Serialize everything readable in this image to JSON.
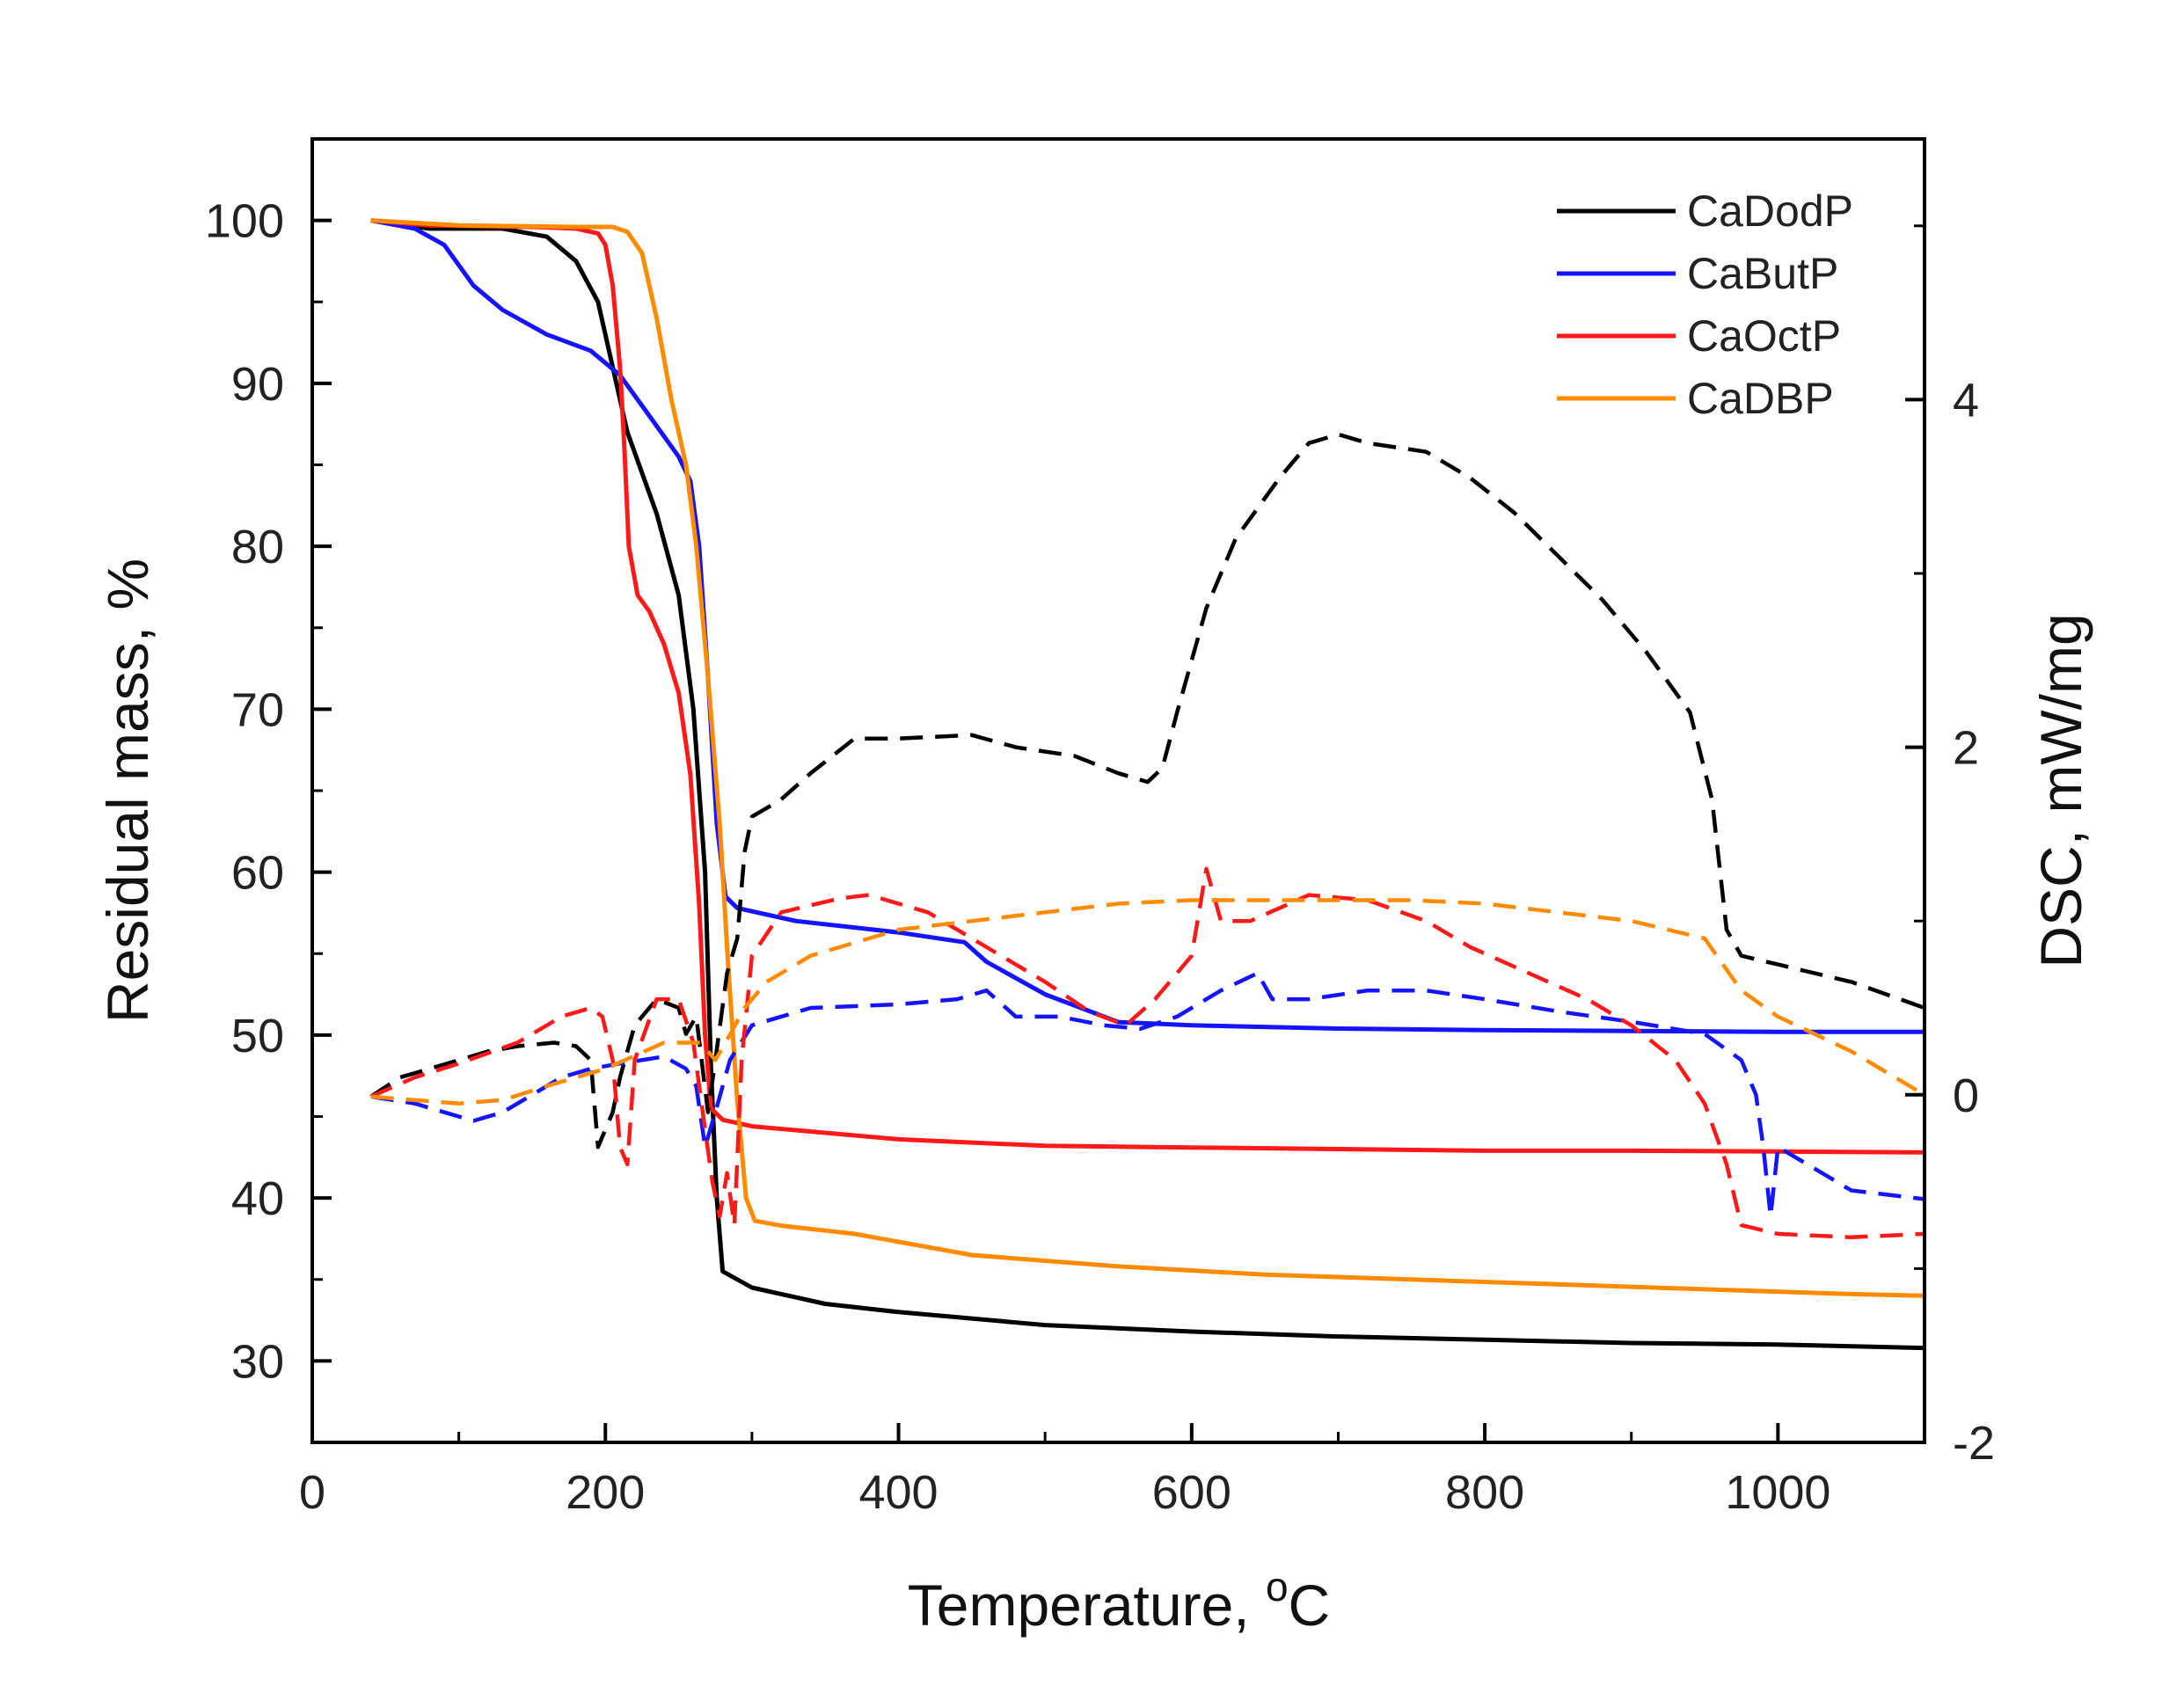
{
  "chart_data": {
    "type": "line",
    "xlabel": "Temperature, ",
    "xlabel_sup": "o",
    "xlabel_unit": "C",
    "ylabel_left": "Residual mass, %",
    "ylabel_right": "DSC, mW/mg",
    "xlim": [
      0,
      1100
    ],
    "ylim_left": [
      25,
      105
    ],
    "ylim_right": [
      -2,
      5.5
    ],
    "x_ticks": [
      0,
      200,
      400,
      600,
      800,
      1000
    ],
    "y_left_ticks": [
      30,
      40,
      50,
      60,
      70,
      80,
      90,
      100
    ],
    "y_right_ticks": [
      -2,
      0,
      2,
      4
    ],
    "legend_position": "top-right",
    "grid": false,
    "colors": {
      "CaDodP": "#000000",
      "CaButP": "#1414ff",
      "CaOctP": "#ff1a1a",
      "CaDBP": "#ff8c00"
    },
    "series": [
      {
        "name": "CaDodP",
        "kind": "TG",
        "axis": "left",
        "points": [
          [
            40,
            100
          ],
          [
            80,
            99.5
          ],
          [
            130,
            99.5
          ],
          [
            160,
            99
          ],
          [
            180,
            97.5
          ],
          [
            195,
            95
          ],
          [
            205,
            91
          ],
          [
            215,
            87
          ],
          [
            235,
            82
          ],
          [
            250,
            77
          ],
          [
            260,
            70
          ],
          [
            268,
            60
          ],
          [
            272,
            48
          ],
          [
            276,
            40
          ],
          [
            280,
            35.5
          ],
          [
            300,
            34.5
          ],
          [
            350,
            33.5
          ],
          [
            400,
            33
          ],
          [
            500,
            32.2
          ],
          [
            600,
            31.8
          ],
          [
            700,
            31.5
          ],
          [
            800,
            31.3
          ],
          [
            900,
            31.1
          ],
          [
            1000,
            31
          ],
          [
            1100,
            30.8
          ]
        ]
      },
      {
        "name": "CaButP",
        "kind": "TG",
        "axis": "left",
        "points": [
          [
            40,
            100
          ],
          [
            70,
            99.5
          ],
          [
            90,
            98.5
          ],
          [
            110,
            96
          ],
          [
            130,
            94.5
          ],
          [
            160,
            93
          ],
          [
            190,
            92
          ],
          [
            210,
            90.5
          ],
          [
            230,
            88
          ],
          [
            250,
            85.5
          ],
          [
            258,
            84
          ],
          [
            264,
            80
          ],
          [
            270,
            72
          ],
          [
            276,
            63
          ],
          [
            282,
            58.5
          ],
          [
            290,
            57.8
          ],
          [
            330,
            57
          ],
          [
            400,
            56.3
          ],
          [
            445,
            55.7
          ],
          [
            460,
            54.5
          ],
          [
            500,
            52.5
          ],
          [
            550,
            50.8
          ],
          [
            600,
            50.6
          ],
          [
            700,
            50.4
          ],
          [
            800,
            50.3
          ],
          [
            900,
            50.25
          ],
          [
            1000,
            50.2
          ],
          [
            1100,
            50.2
          ]
        ]
      },
      {
        "name": "CaOctP",
        "kind": "TG",
        "axis": "left",
        "points": [
          [
            40,
            100
          ],
          [
            80,
            99.7
          ],
          [
            150,
            99.6
          ],
          [
            180,
            99.5
          ],
          [
            195,
            99.2
          ],
          [
            200,
            98.5
          ],
          [
            205,
            96
          ],
          [
            210,
            91
          ],
          [
            213,
            86
          ],
          [
            216,
            80
          ],
          [
            222,
            77
          ],
          [
            230,
            76
          ],
          [
            240,
            74
          ],
          [
            250,
            71
          ],
          [
            258,
            66
          ],
          [
            264,
            58
          ],
          [
            268,
            50
          ],
          [
            272,
            45.5
          ],
          [
            280,
            44.8
          ],
          [
            300,
            44.4
          ],
          [
            400,
            43.6
          ],
          [
            500,
            43.2
          ],
          [
            600,
            43.1
          ],
          [
            700,
            43
          ],
          [
            800,
            42.9
          ],
          [
            900,
            42.9
          ],
          [
            1000,
            42.85
          ],
          [
            1100,
            42.8
          ]
        ]
      },
      {
        "name": "CaDBP",
        "kind": "TG",
        "axis": "left",
        "points": [
          [
            40,
            100
          ],
          [
            100,
            99.7
          ],
          [
            180,
            99.6
          ],
          [
            205,
            99.6
          ],
          [
            215,
            99.3
          ],
          [
            225,
            98
          ],
          [
            235,
            94
          ],
          [
            245,
            89
          ],
          [
            255,
            85
          ],
          [
            262,
            80
          ],
          [
            270,
            72
          ],
          [
            278,
            63
          ],
          [
            284,
            54
          ],
          [
            290,
            46
          ],
          [
            296,
            40
          ],
          [
            302,
            38.6
          ],
          [
            320,
            38.3
          ],
          [
            370,
            37.8
          ],
          [
            450,
            36.5
          ],
          [
            550,
            35.8
          ],
          [
            650,
            35.3
          ],
          [
            750,
            35
          ],
          [
            850,
            34.7
          ],
          [
            950,
            34.4
          ],
          [
            1050,
            34.1
          ],
          [
            1100,
            34
          ]
        ]
      },
      {
        "name": "CaDodP",
        "kind": "DSC",
        "axis": "right",
        "points": [
          [
            40,
            -0.01
          ],
          [
            60,
            0.1
          ],
          [
            80,
            0.15
          ],
          [
            100,
            0.2
          ],
          [
            120,
            0.25
          ],
          [
            140,
            0.28
          ],
          [
            165,
            0.3
          ],
          [
            180,
            0.28
          ],
          [
            190,
            0.2
          ],
          [
            195,
            -0.3
          ],
          [
            200,
            -0.2
          ],
          [
            205,
            -0.1
          ],
          [
            210,
            0.1
          ],
          [
            220,
            0.4
          ],
          [
            235,
            0.55
          ],
          [
            250,
            0.5
          ],
          [
            255,
            0.35
          ],
          [
            262,
            0.45
          ],
          [
            270,
            -0.1
          ],
          [
            275,
            0.2
          ],
          [
            283,
            0.7
          ],
          [
            290,
            0.9
          ],
          [
            295,
            1.4
          ],
          [
            300,
            1.6
          ],
          [
            310,
            1.65
          ],
          [
            320,
            1.7
          ],
          [
            340,
            1.85
          ],
          [
            370,
            2.05
          ],
          [
            400,
            2.05
          ],
          [
            450,
            2.07
          ],
          [
            480,
            2.0
          ],
          [
            520,
            1.95
          ],
          [
            550,
            1.85
          ],
          [
            570,
            1.8
          ],
          [
            580,
            1.88
          ],
          [
            590,
            2.2
          ],
          [
            610,
            2.8
          ],
          [
            630,
            3.2
          ],
          [
            660,
            3.55
          ],
          [
            680,
            3.75
          ],
          [
            700,
            3.8
          ],
          [
            720,
            3.75
          ],
          [
            760,
            3.7
          ],
          [
            790,
            3.55
          ],
          [
            820,
            3.35
          ],
          [
            850,
            3.1
          ],
          [
            880,
            2.85
          ],
          [
            910,
            2.55
          ],
          [
            940,
            2.2
          ],
          [
            955,
            1.7
          ],
          [
            965,
            0.95
          ],
          [
            975,
            0.8
          ],
          [
            1000,
            0.75
          ],
          [
            1050,
            0.65
          ],
          [
            1100,
            0.5
          ]
        ]
      },
      {
        "name": "CaButP",
        "kind": "DSC",
        "axis": "right",
        "points": [
          [
            40,
            -0.01
          ],
          [
            70,
            -0.05
          ],
          [
            90,
            -0.1
          ],
          [
            110,
            -0.15
          ],
          [
            130,
            -0.1
          ],
          [
            150,
            0.0
          ],
          [
            170,
            0.1
          ],
          [
            190,
            0.15
          ],
          [
            210,
            0.18
          ],
          [
            240,
            0.22
          ],
          [
            255,
            0.15
          ],
          [
            262,
            0.05
          ],
          [
            268,
            -0.3
          ],
          [
            275,
            -0.1
          ],
          [
            285,
            0.2
          ],
          [
            300,
            0.4
          ],
          [
            340,
            0.5
          ],
          [
            400,
            0.52
          ],
          [
            440,
            0.55
          ],
          [
            460,
            0.6
          ],
          [
            480,
            0.45
          ],
          [
            510,
            0.45
          ],
          [
            540,
            0.4
          ],
          [
            565,
            0.38
          ],
          [
            590,
            0.45
          ],
          [
            620,
            0.6
          ],
          [
            645,
            0.7
          ],
          [
            655,
            0.55
          ],
          [
            680,
            0.55
          ],
          [
            720,
            0.6
          ],
          [
            760,
            0.6
          ],
          [
            800,
            0.55
          ],
          [
            850,
            0.48
          ],
          [
            900,
            0.42
          ],
          [
            950,
            0.35
          ],
          [
            975,
            0.2
          ],
          [
            985,
            0.0
          ],
          [
            990,
            -0.3
          ],
          [
            995,
            -0.7
          ],
          [
            1000,
            -0.3
          ],
          [
            1020,
            -0.4
          ],
          [
            1050,
            -0.55
          ],
          [
            1100,
            -0.6
          ]
        ]
      },
      {
        "name": "CaOctP",
        "kind": "DSC",
        "axis": "right",
        "points": [
          [
            40,
            -0.01
          ],
          [
            70,
            0.1
          ],
          [
            100,
            0.18
          ],
          [
            140,
            0.3
          ],
          [
            170,
            0.45
          ],
          [
            190,
            0.5
          ],
          [
            198,
            0.45
          ],
          [
            205,
            0.2
          ],
          [
            210,
            -0.3
          ],
          [
            215,
            -0.4
          ],
          [
            220,
            0.2
          ],
          [
            235,
            0.55
          ],
          [
            250,
            0.55
          ],
          [
            260,
            0.3
          ],
          [
            268,
            -0.2
          ],
          [
            273,
            -0.5
          ],
          [
            278,
            -0.7
          ],
          [
            283,
            -0.45
          ],
          [
            288,
            -0.75
          ],
          [
            293,
            0.2
          ],
          [
            300,
            0.8
          ],
          [
            320,
            1.05
          ],
          [
            360,
            1.13
          ],
          [
            380,
            1.15
          ],
          [
            420,
            1.05
          ],
          [
            460,
            0.85
          ],
          [
            500,
            0.65
          ],
          [
            530,
            0.48
          ],
          [
            555,
            0.4
          ],
          [
            575,
            0.55
          ],
          [
            600,
            0.8
          ],
          [
            610,
            1.3
          ],
          [
            620,
            1.0
          ],
          [
            640,
            1.0
          ],
          [
            680,
            1.15
          ],
          [
            720,
            1.12
          ],
          [
            760,
            1.0
          ],
          [
            790,
            0.85
          ],
          [
            830,
            0.7
          ],
          [
            870,
            0.55
          ],
          [
            900,
            0.4
          ],
          [
            930,
            0.2
          ],
          [
            950,
            -0.05
          ],
          [
            965,
            -0.4
          ],
          [
            975,
            -0.75
          ],
          [
            1000,
            -0.8
          ],
          [
            1050,
            -0.82
          ],
          [
            1100,
            -0.8
          ]
        ]
      },
      {
        "name": "CaDBP",
        "kind": "DSC",
        "axis": "right",
        "points": [
          [
            40,
            -0.01
          ],
          [
            100,
            -0.05
          ],
          [
            130,
            -0.03
          ],
          [
            160,
            0.05
          ],
          [
            200,
            0.15
          ],
          [
            240,
            0.3
          ],
          [
            265,
            0.3
          ],
          [
            275,
            0.2
          ],
          [
            282,
            0.3
          ],
          [
            295,
            0.5
          ],
          [
            310,
            0.65
          ],
          [
            340,
            0.8
          ],
          [
            400,
            0.95
          ],
          [
            450,
            1.0
          ],
          [
            500,
            1.05
          ],
          [
            550,
            1.1
          ],
          [
            600,
            1.12
          ],
          [
            650,
            1.12
          ],
          [
            700,
            1.12
          ],
          [
            750,
            1.12
          ],
          [
            800,
            1.1
          ],
          [
            850,
            1.05
          ],
          [
            900,
            1.0
          ],
          [
            950,
            0.9
          ],
          [
            975,
            0.6
          ],
          [
            1000,
            0.45
          ],
          [
            1050,
            0.25
          ],
          [
            1100,
            0.0
          ]
        ]
      }
    ]
  }
}
